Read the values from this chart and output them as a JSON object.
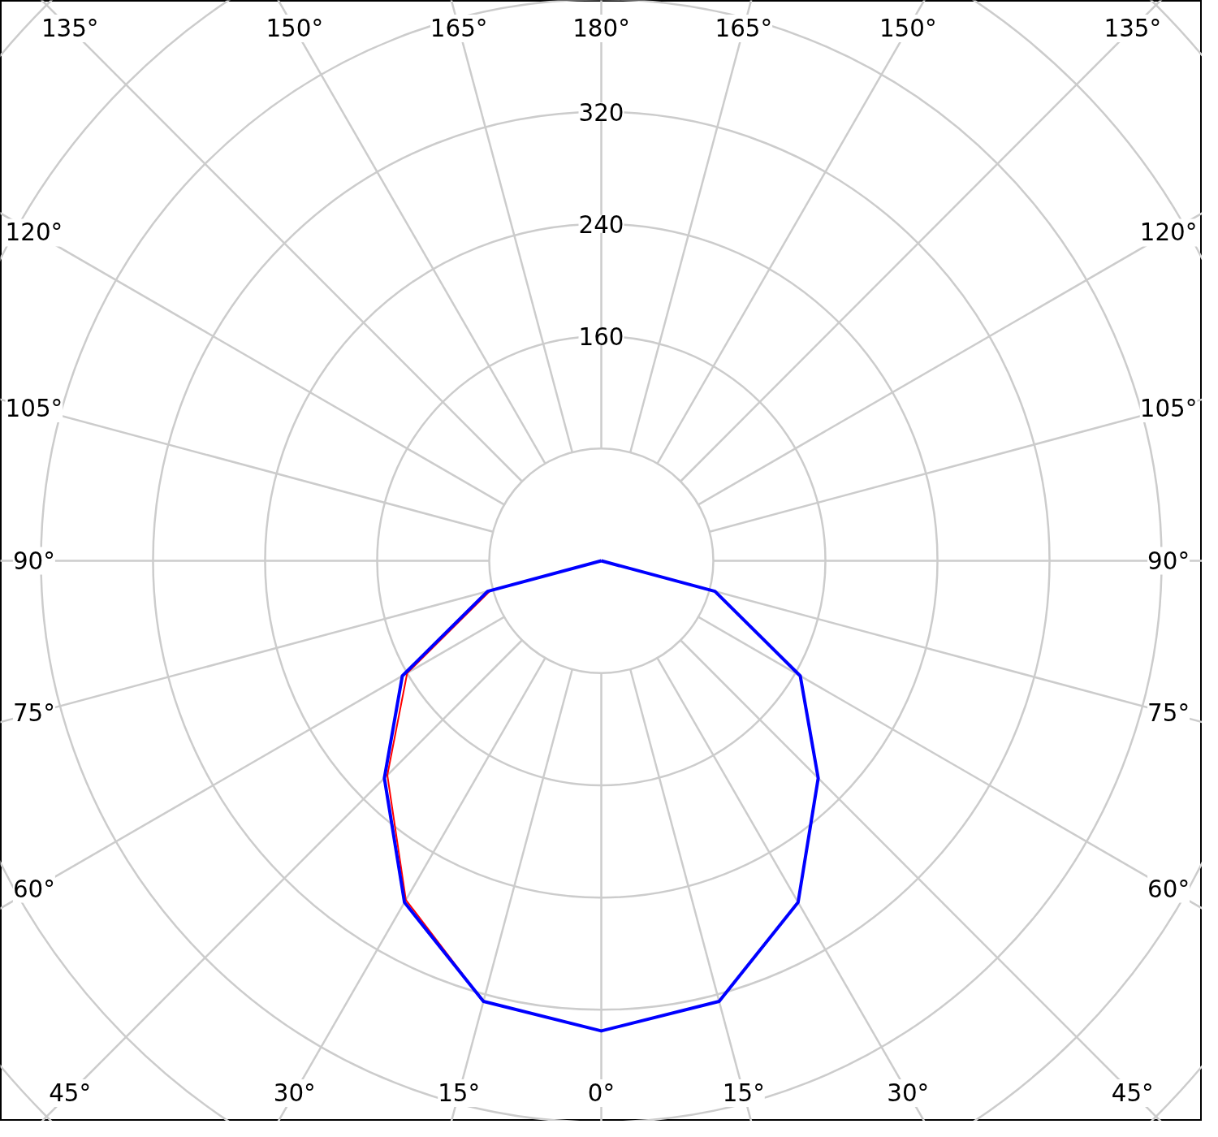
{
  "chart_data": {
    "type": "radar",
    "categories": [
      "180°",
      "165°",
      "150°",
      "135°",
      "120°",
      "105°",
      "90°",
      "75°",
      "60°",
      "45°",
      "30°",
      "15°",
      "0°",
      "15°",
      "30°",
      "45°",
      "60°",
      "75°",
      "90°",
      "105°",
      "120°",
      "135°",
      "150°",
      "165°"
    ],
    "series": [
      {
        "color": "#ff0000",
        "values": [
          0,
          0,
          0,
          0,
          0,
          0,
          0,
          84,
          164,
          219,
          281,
          325,
          335,
          325,
          279,
          216,
          160,
          82,
          0,
          0,
          0,
          0,
          0,
          0
        ]
      },
      {
        "color": "#0000ff",
        "values": [
          0,
          0,
          0,
          0,
          0,
          0,
          0,
          84,
          164,
          219,
          281,
          325,
          335,
          325,
          281,
          219,
          164,
          84,
          0,
          0,
          0,
          0,
          0,
          0
        ]
      }
    ],
    "ylim": [
      0,
      560
    ],
    "yticks": [
      160,
      240,
      320
    ],
    "grid": true
  }
}
